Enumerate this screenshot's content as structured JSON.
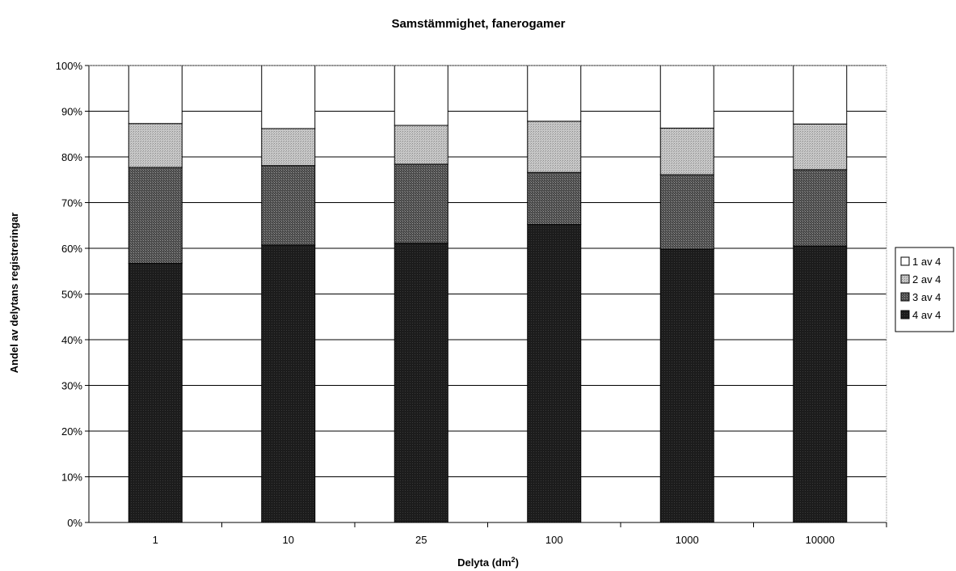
{
  "chart_data": {
    "type": "bar",
    "stacked": true,
    "title": "Samstämmighet, fanerogamer",
    "xlabel_main": "Delyta (dm",
    "xlabel_sup": "2",
    "xlabel_end": ")",
    "ylabel": "Andel av delytans registreringar",
    "categories": [
      "1",
      "10",
      "25",
      "100",
      "1000",
      "10000"
    ],
    "ylim": [
      0,
      100
    ],
    "y_ticks": [
      "0%",
      "10%",
      "20%",
      "30%",
      "40%",
      "50%",
      "60%",
      "70%",
      "80%",
      "90%",
      "100%"
    ],
    "grid": true,
    "legend_position": "right",
    "series": [
      {
        "name": "4 av 4",
        "color": "#202020",
        "values": [
          56.7,
          60.7,
          61.1,
          65.2,
          59.8,
          60.5
        ]
      },
      {
        "name": "3 av 4",
        "color": "#555555",
        "values": [
          21.0,
          17.4,
          17.3,
          11.4,
          16.3,
          16.7
        ]
      },
      {
        "name": "2 av 4",
        "color": "#bdbdbd",
        "values": [
          9.6,
          8.1,
          8.5,
          11.2,
          10.2,
          10.0
        ]
      },
      {
        "name": "1 av 4",
        "color": "#ffffff",
        "values": [
          12.7,
          13.8,
          13.1,
          12.2,
          13.7,
          12.8
        ]
      }
    ],
    "legend_order": [
      "1 av 4",
      "2 av 4",
      "3 av 4",
      "4 av 4"
    ]
  }
}
